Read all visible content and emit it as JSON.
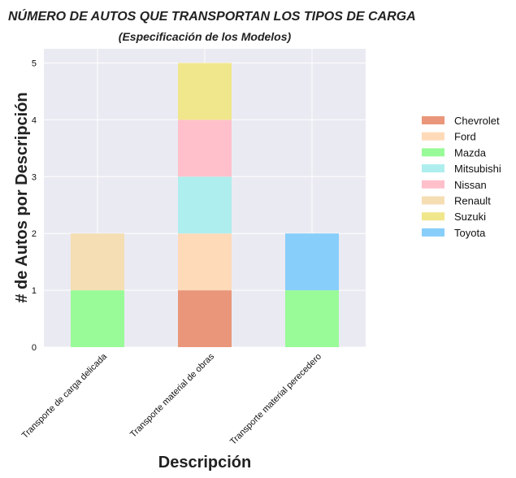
{
  "chart_data": {
    "type": "bar",
    "stacked": true,
    "title": "NÚMERO DE AUTOS QUE TRANSPORTAN LOS TIPOS DE CARGA",
    "subtitle": "(Especificación de los Modelos)",
    "xlabel": "Descripción",
    "ylabel": "# de Autos por Descripción",
    "ylim": [
      0,
      5.25
    ],
    "yticks": [
      "0",
      "1",
      "2",
      "3",
      "4",
      "5"
    ],
    "grid": true,
    "legend_position": "right",
    "categories": [
      "Transporte de carga delicada",
      "Transporte material de obras",
      "Transporte material perecedero"
    ],
    "series": [
      {
        "name": "Chevrolet",
        "color": "#E9967A",
        "values": [
          0,
          1,
          0
        ]
      },
      {
        "name": "Ford",
        "color": "#FFDAB9",
        "values": [
          0,
          1,
          0
        ]
      },
      {
        "name": "Mazda",
        "color": "#98FB98",
        "values": [
          1,
          0,
          1
        ]
      },
      {
        "name": "Mitsubishi",
        "color": "#AFEEEE",
        "values": [
          0,
          1,
          0
        ]
      },
      {
        "name": "Nissan",
        "color": "#FFC0CB",
        "values": [
          0,
          1,
          0
        ]
      },
      {
        "name": "Renault",
        "color": "#F5DEB3",
        "values": [
          1,
          0,
          0
        ]
      },
      {
        "name": "Suzuki",
        "color": "#F0E68C",
        "values": [
          0,
          1,
          0
        ]
      },
      {
        "name": "Toyota",
        "color": "#87CEFA",
        "values": [
          0,
          0,
          1
        ]
      }
    ]
  }
}
